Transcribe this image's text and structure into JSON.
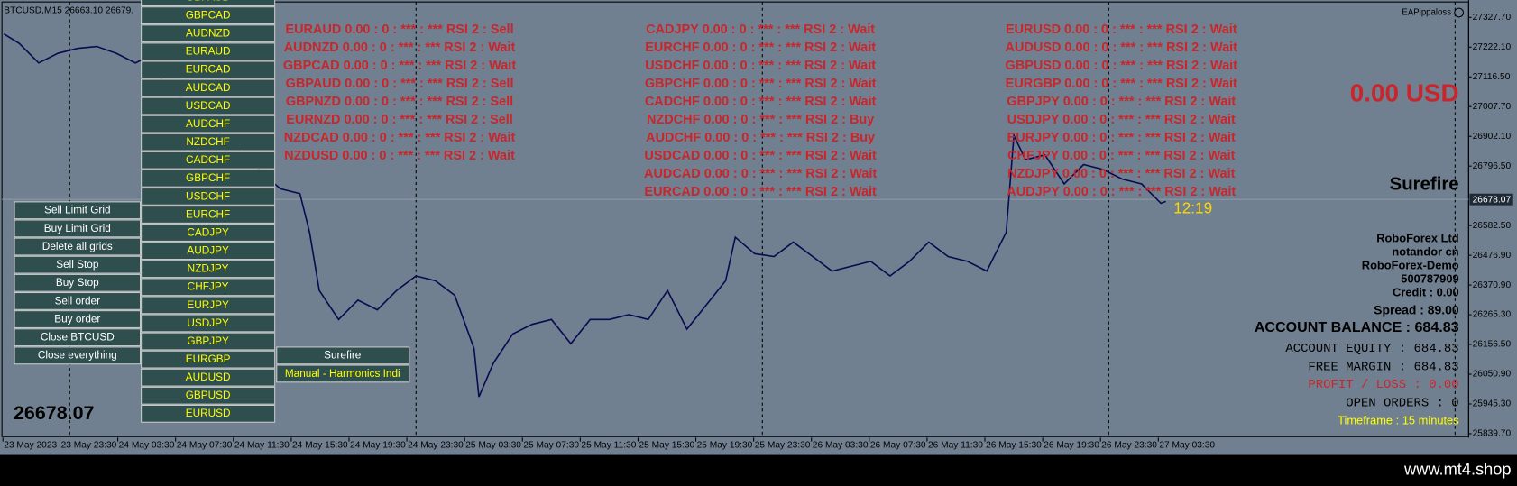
{
  "title_bar": "BTCUSD,M15  26663.10 26679.",
  "ea_name": "EAPippaloss",
  "symbol_buttons": [
    "GBPAUD",
    "GBPCAD",
    "AUDNZD",
    "EURAUD",
    "EURCAD",
    "AUDCAD",
    "USDCAD",
    "AUDCHF",
    "NZDCHF",
    "CADCHF",
    "GBPCHF",
    "USDCHF",
    "EURCHF",
    "CADJPY",
    "AUDJPY",
    "NZDJPY",
    "CHFJPY",
    "EURJPY",
    "USDJPY",
    "GBPJPY",
    "EURGBP",
    "AUDUSD",
    "GBPUSD",
    "EURUSD"
  ],
  "action_buttons": [
    "Sell Limit Grid",
    "Buy Limit Grid",
    "Delete all grids",
    "Sell Stop",
    "Buy Stop",
    "Sell order",
    "Buy order",
    "Close BTCUSD",
    "Close everything"
  ],
  "strategy_buttons": [
    "Surefire",
    "Manual - Harmonics Indi"
  ],
  "current_price": "26678.07",
  "signals": [
    [
      "EURAUD  0.00 : 0 : *** : *** RSI 2 : Sell",
      "AUDNZD  0.00 : 0 : *** : *** RSI 2 : Wait",
      "GBPCAD  0.00 : 0 : *** : *** RSI 2 : Wait",
      "GBPAUD  0.00 : 0 : *** : *** RSI 2 : Sell",
      "GBPNZD  0.00 : 0 : *** : *** RSI 2 : Sell",
      "EURNZD  0.00 : 0 : *** : *** RSI 2 : Sell",
      "NZDCAD  0.00 : 0 : *** : *** RSI 2 : Wait",
      "NZDUSD  0.00 : 0 : *** : *** RSI 2 : Wait"
    ],
    [
      "CADJPY  0.00 : 0 : *** : *** RSI 2 : Wait",
      "EURCHF  0.00 : 0 : *** : *** RSI 2 : Wait",
      "USDCHF  0.00 : 0 : *** : *** RSI 2 : Wait",
      "GBPCHF  0.00 : 0 : *** : *** RSI 2 : Wait",
      "CADCHF  0.00 : 0 : *** : *** RSI 2 : Wait",
      "NZDCHF  0.00 : 0 : *** : *** RSI 2 : Buy",
      "AUDCHF  0.00 : 0 : *** : *** RSI 2 : Buy",
      "USDCAD  0.00 : 0 : *** : *** RSI 2 : Wait",
      "AUDCAD  0.00 : 0 : *** : *** RSI 2 : Wait",
      "EURCAD  0.00 : 0 : *** : *** RSI 2 : Wait"
    ],
    [
      "EURUSD  0.00 : 0 : *** : *** RSI 2 : Wait",
      "AUDUSD  0.00 : 0 : *** : *** RSI 2 : Wait",
      "GBPUSD  0.00 : 0 : *** : *** RSI 2 : Wait",
      "EURGBP  0.00 : 0 : *** : *** RSI 2 : Wait",
      "GBPJPY  0.00 : 0 : *** : *** RSI 2 : Wait",
      "USDJPY  0.00 : 0 : *** : *** RSI 2 : Wait",
      "EURJPY  0.00 : 0 : *** : *** RSI 2 : Wait",
      "CHFJPY  0.00 : 0 : *** : *** RSI 2 : Wait",
      "NZDJPY  0.00 : 0 : *** : *** RSI 2 : Wait",
      "AUDJPY  0.00 : 0 : *** : *** RSI 2 : Wait"
    ]
  ],
  "profit": "0.00 USD",
  "strategy": "Surefire",
  "clock": "12:19",
  "account": {
    "broker": "RoboForex Ltd",
    "name": "notandor cn",
    "server": "RoboForex-Demo",
    "number": "500787909",
    "credit": "Credit : 0.00",
    "spread": "Spread : 89.00",
    "balance": "ACCOUNT BALANCE : 684.83",
    "equity": "ACCOUNT EQUITY : 684.83",
    "free_margin": "FREE MARGIN : 684.83",
    "profit_loss": "PROFIT / LOSS : 0.00",
    "open_orders": "OPEN ORDERS : 0",
    "timeframe": "Timeframe : 15 minutes"
  },
  "price_axis": [
    "27327.70",
    "27222.10",
    "27116.50",
    "27007.70",
    "26902.10",
    "26796.50",
    "26582.50",
    "26476.90",
    "26370.90",
    "26265.30",
    "26156.50",
    "26050.90",
    "25945.30",
    "25839.70"
  ],
  "time_axis": [
    "23 May 2023",
    "23 May 23:30",
    "24 May 03:30",
    "24 May 07:30",
    "24 May 11:30",
    "24 May 15:30",
    "24 May 19:30",
    "24 May 23:30",
    "25 May 03:30",
    "25 May 07:30",
    "25 May 11:30",
    "25 May 15:30",
    "25 May 19:30",
    "25 May 23:30",
    "26 May 03:30",
    "26 May 07:30",
    "26 May 11:30",
    "26 May 15:30",
    "26 May 19:30",
    "26 May 23:30",
    "27 May 03:30"
  ],
  "footer": "www.mt4.shop"
}
